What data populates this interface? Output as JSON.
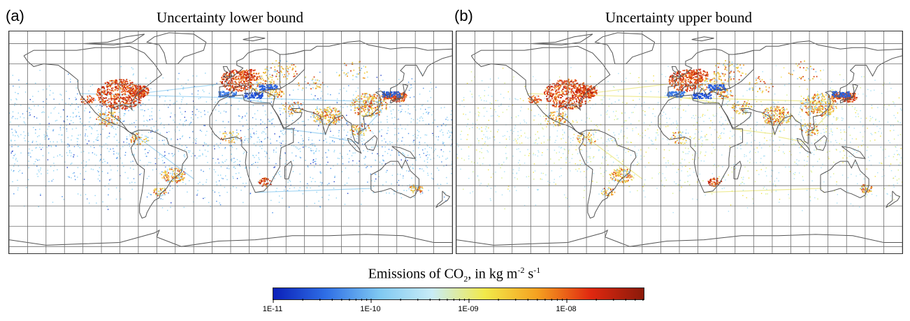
{
  "panels": [
    {
      "letter": "(a)",
      "title": "Uncertainty lower bound"
    },
    {
      "letter": "(b)",
      "title": "Uncertainty upper bound"
    }
  ],
  "colorbar": {
    "title_main": "Emissions of CO",
    "title_sub": "2",
    "title_unit": ", in kg m",
    "title_exp1": "-2",
    "title_s": " s",
    "title_exp2": "-1",
    "tick_labels": [
      "1E-11",
      "1E-10",
      "1E-09",
      "1E-08"
    ],
    "colors": [
      "#0a1fb8",
      "#2f6fe6",
      "#7ec8f2",
      "#c9ecf6",
      "#f2ea4a",
      "#f5a020",
      "#e02810",
      "#8a1a0a"
    ]
  }
}
